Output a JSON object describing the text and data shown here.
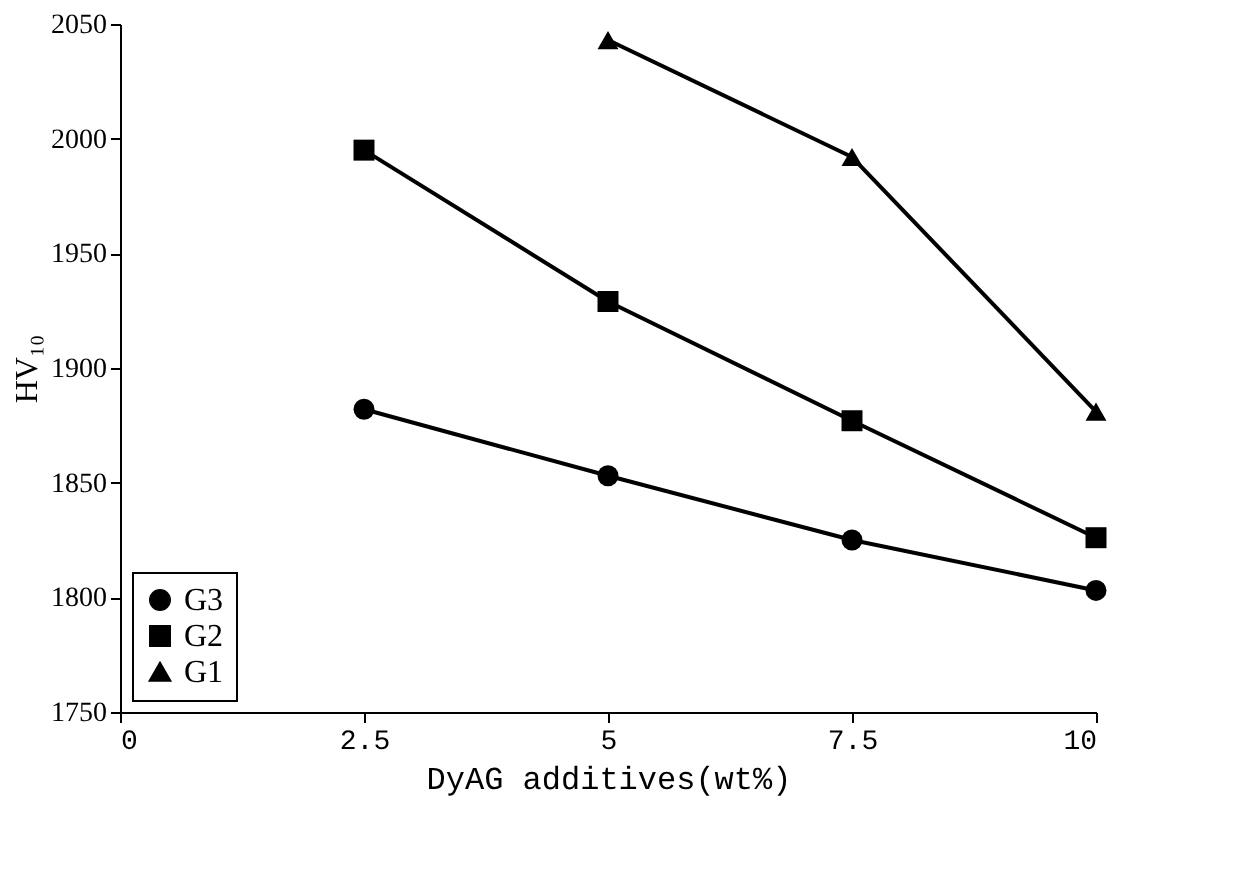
{
  "chart_data": {
    "type": "line",
    "xlabel": "DyAG additives(wt%)",
    "ylabel": "HV₁₀",
    "x": [
      2.5,
      5,
      7.5,
      10
    ],
    "series": [
      {
        "name": "G3",
        "color": "#000000",
        "marker": "circle",
        "values": [
          1882,
          1853,
          1825,
          1803
        ]
      },
      {
        "name": "G2",
        "color": "#000000",
        "marker": "square",
        "values": [
          1995,
          1929,
          1877,
          1826
        ]
      },
      {
        "name": "G1",
        "color": "#000000",
        "marker": "triangle",
        "values": [
          null,
          2043,
          1992,
          1881
        ]
      }
    ],
    "xlim": [
      0,
      10
    ],
    "xticks": [
      0,
      2.5,
      5,
      7.5,
      10
    ],
    "ylim": [
      1750,
      2050
    ],
    "yticks": [
      1750,
      1800,
      1850,
      1900,
      1950,
      2000,
      2050
    ],
    "grid": false,
    "legend": "bottom left",
    "line_style": "solid"
  }
}
